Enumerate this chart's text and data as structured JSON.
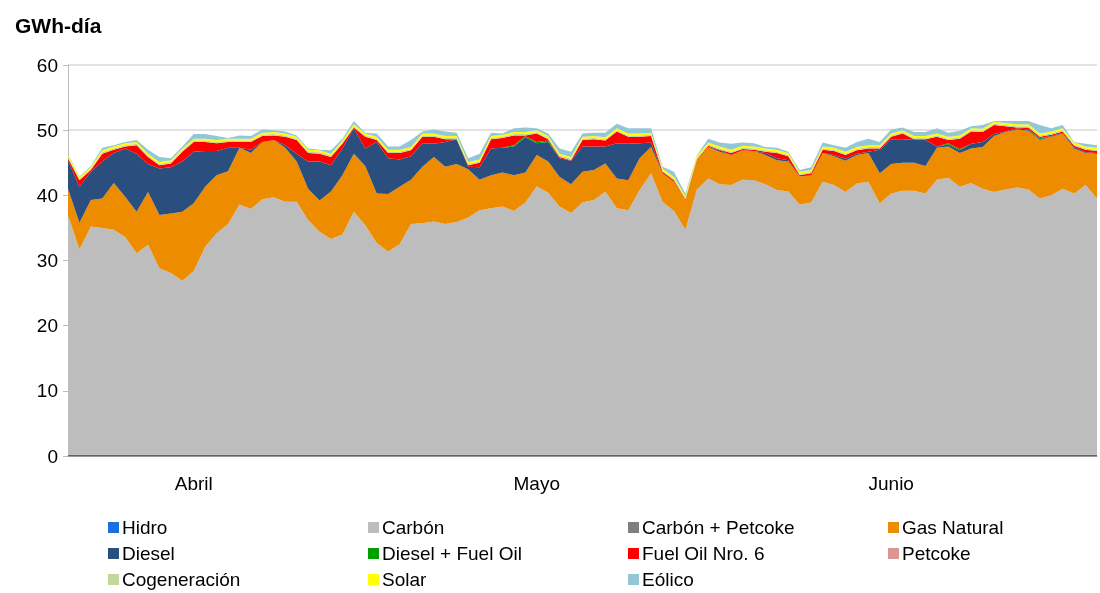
{
  "chart_data": {
    "type": "area",
    "stacked": true,
    "ylabel": "GWh-día",
    "ylim": [
      0,
      60
    ],
    "yticks": [
      0,
      10,
      20,
      30,
      40,
      50,
      60
    ],
    "grid": "y",
    "legend": "bottom",
    "categories": [
      null,
      null,
      null,
      null,
      null,
      null,
      null,
      null,
      null,
      null,
      null,
      "Abril",
      null,
      null,
      null,
      null,
      null,
      null,
      null,
      null,
      null,
      null,
      null,
      null,
      null,
      null,
      null,
      null,
      null,
      null,
      null,
      null,
      null,
      null,
      null,
      null,
      null,
      null,
      null,
      null,
      null,
      "Mayo",
      null,
      null,
      null,
      null,
      null,
      null,
      null,
      null,
      null,
      null,
      null,
      null,
      null,
      null,
      null,
      null,
      null,
      null,
      null,
      null,
      null,
      null,
      null,
      null,
      null,
      null,
      null,
      null,
      null,
      null,
      "Junio",
      null,
      null,
      null,
      null,
      null,
      null,
      null,
      null,
      null,
      null,
      null,
      null,
      null,
      null,
      null,
      null,
      null,
      null
    ],
    "series": [
      {
        "name": "Hidro",
        "color": "#1a6fdf",
        "values": [
          0.2,
          0.2,
          0.2,
          0.2,
          0.2,
          0.2,
          0.2,
          0.2,
          0.2,
          0.2,
          0.2,
          0.2,
          0.2,
          0.2,
          0.2,
          0.2,
          0.2,
          0.2,
          0.2,
          0.2,
          0.2,
          0.2,
          0.2,
          0.2,
          0.2,
          0.2,
          0.2,
          0.2,
          0.2,
          0.2,
          0.2,
          0.2,
          0.2,
          0.2,
          0.2,
          0.2,
          0.2,
          0.2,
          0.2,
          0.2,
          0.2,
          0.2,
          0.2,
          0.2,
          0.2,
          0.2,
          0.2,
          0.2,
          0.2,
          0.2,
          0.2,
          0.2,
          0.2,
          0.2,
          0.2,
          0.2,
          0.2,
          0.2,
          0.2,
          0.2,
          0.2,
          0.2,
          0.2,
          0.2,
          0.2,
          0.2,
          0.2,
          0.2,
          0.2,
          0.2,
          0.2,
          0.2,
          0.2,
          0.2,
          0.2,
          0.2,
          0.2,
          0.2,
          0.2,
          0.2,
          0.2,
          0.2,
          0.2,
          0.2,
          0.2,
          0.2,
          0.2,
          0.2,
          0.2,
          0.2,
          0.2
        ]
      },
      {
        "name": "Carbón",
        "color": "#bdbdbd",
        "values": [
          36.8,
          31.5,
          35.0,
          34.8,
          34.5,
          33.4,
          30.9,
          32.2,
          28.6,
          27.9,
          26.7,
          28.2,
          31.9,
          34.0,
          35.4,
          38.4,
          37.7,
          39.2,
          39.5,
          38.8,
          38.8,
          36.0,
          34.2,
          33.1,
          33.8,
          37.3,
          35.2,
          32.5,
          31.2,
          32.3,
          35.4,
          35.5,
          35.8,
          35.4,
          35.7,
          36.4,
          37.5,
          37.8,
          38.1,
          37.4,
          38.7,
          41.2,
          40.2,
          38.1,
          37.1,
          38.7,
          39.1,
          40.4,
          37.8,
          37.5,
          40.6,
          43.2,
          38.8,
          37.4,
          34.5,
          40.7,
          42.4,
          41.5,
          41.4,
          42.2,
          42.1,
          41.5,
          40.6,
          40.4,
          38.4,
          38.7,
          41.9,
          41.4,
          40.3,
          41.6,
          41.9,
          38.6,
          40.1,
          40.5,
          40.5,
          40.1,
          42.2,
          42.5,
          41.1,
          41.7,
          40.8,
          40.3,
          40.7,
          41.0,
          40.7,
          39.3,
          39.8,
          40.8,
          40.1,
          41.4,
          39.3
        ]
      },
      {
        "name": "Carbón + Petcoke",
        "color": "#7f7f7f",
        "values": [
          null,
          null,
          null,
          null,
          null,
          null,
          null,
          null,
          null,
          null,
          null,
          null,
          null,
          null,
          null,
          null,
          null,
          null,
          null,
          null,
          null,
          null,
          null,
          null,
          null,
          null,
          null,
          null,
          null,
          null,
          null,
          null,
          null,
          null,
          null,
          null,
          null,
          null,
          null,
          null,
          null,
          null,
          null,
          null,
          null,
          null,
          null,
          null,
          null,
          null,
          null,
          null,
          null,
          null,
          null,
          null,
          null,
          null,
          null,
          null,
          null,
          null,
          null,
          null,
          null,
          null,
          null,
          null,
          null,
          null,
          null,
          null,
          null,
          null,
          null,
          null,
          null,
          null,
          null,
          null,
          null,
          null,
          null,
          null,
          null,
          null,
          null,
          null,
          null,
          null,
          null
        ]
      },
      {
        "name": "Gas Natural",
        "color": "#ee8c00",
        "values": [
          4.0,
          4.1,
          4.1,
          4.5,
          7.2,
          6.2,
          6.4,
          8.1,
          8.2,
          9.1,
          10.6,
          10.4,
          9.2,
          8.9,
          8.1,
          8.7,
          8.6,
          8.8,
          8.8,
          8.3,
          6.2,
          4.8,
          4.8,
          7.3,
          9.1,
          8.9,
          9.1,
          7.6,
          8.8,
          8.8,
          6.8,
          8.7,
          9.9,
          8.8,
          8.9,
          7.4,
          4.7,
          5.1,
          5.2,
          5.5,
          4.6,
          4.8,
          4.8,
          4.5,
          4.4,
          4.7,
          4.6,
          4.3,
          4.6,
          4.6,
          4.9,
          4.0,
          4.4,
          4.5,
          4.6,
          4.5,
          4.8,
          5.0,
          4.6,
          4.5,
          4.5,
          4.5,
          4.6,
          4.6,
          4.3,
          4.2,
          4.4,
          4.4,
          4.8,
          4.4,
          4.4,
          4.6,
          4.5,
          4.3,
          4.3,
          4.2,
          4.9,
          4.8,
          5.2,
          5.3,
          6.4,
          8.6,
          8.8,
          8.9,
          9.0,
          9.0,
          9.0,
          8.5,
          6.9,
          4.9,
          6.9
        ]
      },
      {
        "name": "Diesel",
        "color": "#2a4f7f",
        "values": [
          4.4,
          5.5,
          4.3,
          5.7,
          4.6,
          7.4,
          8.9,
          4.3,
          7.1,
          7.1,
          7.7,
          7.9,
          5.5,
          3.7,
          3.6,
          0,
          0.5,
          0,
          0,
          0.4,
          1.2,
          4.2,
          6.0,
          4.0,
          4.1,
          3.9,
          2.7,
          7.9,
          5.5,
          4.2,
          3.6,
          3.6,
          2.0,
          3.8,
          3.8,
          0.4,
          1.9,
          4.1,
          3.8,
          4.4,
          5.4,
          1.8,
          3.0,
          2.9,
          3.6,
          3.9,
          3.6,
          2.6,
          5.4,
          5.6,
          2.3,
          0.7,
          0,
          0,
          0,
          0,
          0,
          0.2,
          0,
          0,
          0,
          0.3,
          0.3,
          0.2,
          0,
          0,
          0,
          0.2,
          0.3,
          0.2,
          0.2,
          3.6,
          3.8,
          3.6,
          3.5,
          4.0,
          0.2,
          0.3,
          0.4,
          0.7,
          0.8,
          0.3,
          0.1,
          0.2,
          0.2,
          0.1,
          0.1,
          0.1,
          0.2,
          0.1,
          0.1
        ]
      },
      {
        "name": "Diesel + Fuel Oil",
        "color": "#00a000",
        "values": [
          0,
          0,
          0,
          0,
          0,
          0,
          0,
          0,
          0,
          0,
          0,
          0,
          0,
          0,
          0,
          0,
          0,
          0,
          0,
          0,
          0,
          0,
          0,
          0,
          0,
          0,
          0,
          0,
          0,
          0,
          0,
          0,
          0,
          0,
          0,
          0,
          0,
          0,
          0,
          0.2,
          0.2,
          0.2,
          0.2,
          0,
          0,
          0,
          0,
          0,
          0,
          0,
          0,
          0,
          0,
          0,
          0,
          0,
          0,
          0,
          0,
          0,
          0,
          0,
          0,
          0,
          0,
          0,
          0,
          0,
          0,
          0,
          0,
          0,
          0,
          0,
          0,
          0,
          0,
          0.2,
          0.2,
          0,
          0,
          0,
          0,
          0,
          0,
          0.2,
          0,
          0,
          0,
          0,
          0
        ]
      },
      {
        "name": "Fuel Oil Nro. 6",
        "color": "#ff0000",
        "values": [
          0.3,
          1.0,
          0.3,
          1.2,
          0.5,
          0.3,
          1.3,
          1.1,
          0.5,
          0.6,
          1.5,
          1.5,
          1.4,
          1.2,
          0.9,
          0.9,
          1.2,
          0.9,
          0.7,
          1.3,
          2.1,
          1.3,
          1.2,
          1.3,
          0.7,
          0.1,
          1.8,
          0.3,
          0.8,
          1.0,
          0.9,
          1.0,
          1.1,
          0.4,
          0,
          0.2,
          0.7,
          1.4,
          1.5,
          1.5,
          0.1,
          1.3,
          0.2,
          0.2,
          0.1,
          1.0,
          1.1,
          0.9,
          1.8,
          1.1,
          1.0,
          1.0,
          0.2,
          0.2,
          0.1,
          0.1,
          0.2,
          0.1,
          0.3,
          0.2,
          0.2,
          0.2,
          0.8,
          0.6,
          0.2,
          0.3,
          0.5,
          0.6,
          0.6,
          0.5,
          0.5,
          0.2,
          0.4,
          0.9,
          0.1,
          0.1,
          1.5,
          0.5,
          1.6,
          1.9,
          1.5,
          1.4,
          0.8,
          0.1,
          0.3,
          0.2,
          0.2,
          0.2,
          0.2,
          0.4,
          0.3
        ]
      },
      {
        "name": "Petcoke",
        "color": "#d99694",
        "values": [
          null,
          null,
          null,
          null,
          null,
          null,
          null,
          null,
          null,
          null,
          null,
          null,
          null,
          null,
          null,
          null,
          null,
          null,
          null,
          null,
          null,
          null,
          null,
          null,
          null,
          null,
          null,
          null,
          null,
          null,
          null,
          null,
          null,
          null,
          null,
          null,
          null,
          null,
          null,
          null,
          null,
          null,
          null,
          null,
          null,
          null,
          null,
          null,
          null,
          null,
          null,
          null,
          null,
          null,
          null,
          null,
          null,
          null,
          null,
          null,
          null,
          null,
          null,
          null,
          null,
          null,
          null,
          null,
          null,
          null,
          null,
          null,
          null,
          null,
          null,
          null,
          null,
          null,
          null,
          null,
          null,
          null,
          null,
          null,
          null,
          null,
          null,
          null,
          null,
          null,
          null
        ]
      },
      {
        "name": "Cogeneración",
        "color": "#c3d69b",
        "values": [
          0.2,
          0.2,
          0.2,
          0.2,
          0.2,
          0.2,
          0.2,
          0.2,
          0.2,
          0.2,
          0.2,
          0.2,
          0.2,
          0.2,
          0.2,
          0.2,
          0.2,
          0.2,
          0.2,
          0.2,
          0.2,
          0.2,
          0.2,
          0.2,
          0.2,
          0.2,
          0.2,
          0.2,
          0.2,
          0.2,
          0.2,
          0.2,
          0.2,
          0.2,
          0.2,
          0.2,
          0.2,
          0.2,
          0.2,
          0.2,
          0.2,
          0.2,
          0.2,
          0.2,
          0.2,
          0.2,
          0.2,
          0.2,
          0.2,
          0.2,
          0.2,
          0.2,
          0.2,
          0.2,
          0.2,
          0.2,
          0.2,
          0.2,
          0.2,
          0.2,
          0.2,
          0.2,
          0.2,
          0.2,
          0.2,
          0.2,
          0.2,
          0.2,
          0.2,
          0.2,
          0.2,
          0.2,
          0.2,
          0.2,
          0.2,
          0.2,
          0.2,
          0.2,
          0.2,
          0.2,
          0.2,
          0.2,
          0.2,
          0.2,
          0.2,
          0.2,
          0.2,
          0.2,
          0.2,
          0.2,
          0.2
        ]
      },
      {
        "name": "Solar",
        "color": "#ffff00",
        "values": [
          0.3,
          0.3,
          0.3,
          0.3,
          0.3,
          0.3,
          0.3,
          0.3,
          0.3,
          0.3,
          0.3,
          0.3,
          0.3,
          0.3,
          0.3,
          0.3,
          0.3,
          0.3,
          0.3,
          0.3,
          0.3,
          0.3,
          0.3,
          0.3,
          0.3,
          0.3,
          0.3,
          0.3,
          0.3,
          0.3,
          0.3,
          0.3,
          0.3,
          0.3,
          0.3,
          0.3,
          0.3,
          0.3,
          0.3,
          0.3,
          0.3,
          0.3,
          0.3,
          0.3,
          0.3,
          0.3,
          0.3,
          0.3,
          0.3,
          0.3,
          0.3,
          0.3,
          0.3,
          0.3,
          0.3,
          0.3,
          0.3,
          0.3,
          0.3,
          0.3,
          0.3,
          0.3,
          0.3,
          0.3,
          0.3,
          0.3,
          0.3,
          0.3,
          0.3,
          0.3,
          0.3,
          0.3,
          0.3,
          0.3,
          0.3,
          0.3,
          0.3,
          0.3,
          0.3,
          0.3,
          0.3,
          0.3,
          0.3,
          0.3,
          0.3,
          0.3,
          0.3,
          0.3,
          0.3,
          0.3,
          0.3
        ]
      },
      {
        "name": "Eólico",
        "color": "#93c6d6",
        "values": [
          0.1,
          0.1,
          0.1,
          0.4,
          0.2,
          0.2,
          0.3,
          0.6,
          0.8,
          0.3,
          0.3,
          0.7,
          0.7,
          0.6,
          0.1,
          0.5,
          0.4,
          0.5,
          0.3,
          0.3,
          0.2,
          0.2,
          0.1,
          0.5,
          0.3,
          0.5,
          0.1,
          0.5,
          0.5,
          0.5,
          1.1,
          0.3,
          0.6,
          0.7,
          0.5,
          0.6,
          0.9,
          0.5,
          0.2,
          0.6,
          0.7,
          0.3,
          0.4,
          0.8,
          0.8,
          0.5,
          0.5,
          0.7,
          0.7,
          0.8,
          0.8,
          0.7,
          0.3,
          0.8,
          0.4,
          0.1,
          0.6,
          0.6,
          0.9,
          0.5,
          0.5,
          0.2,
          0.3,
          0.2,
          0.3,
          0.4,
          0.6,
          0.4,
          0.6,
          0.8,
          1.0,
          0.5,
          0.6,
          0.4,
          0.6,
          0.6,
          0.8,
          0.6,
          0.7,
          0.3,
          0.6,
          0.1,
          0.3,
          0.5,
          0.5,
          1.3,
          0.5,
          0.5,
          0.1,
          0.4,
          0.4
        ]
      }
    ]
  }
}
